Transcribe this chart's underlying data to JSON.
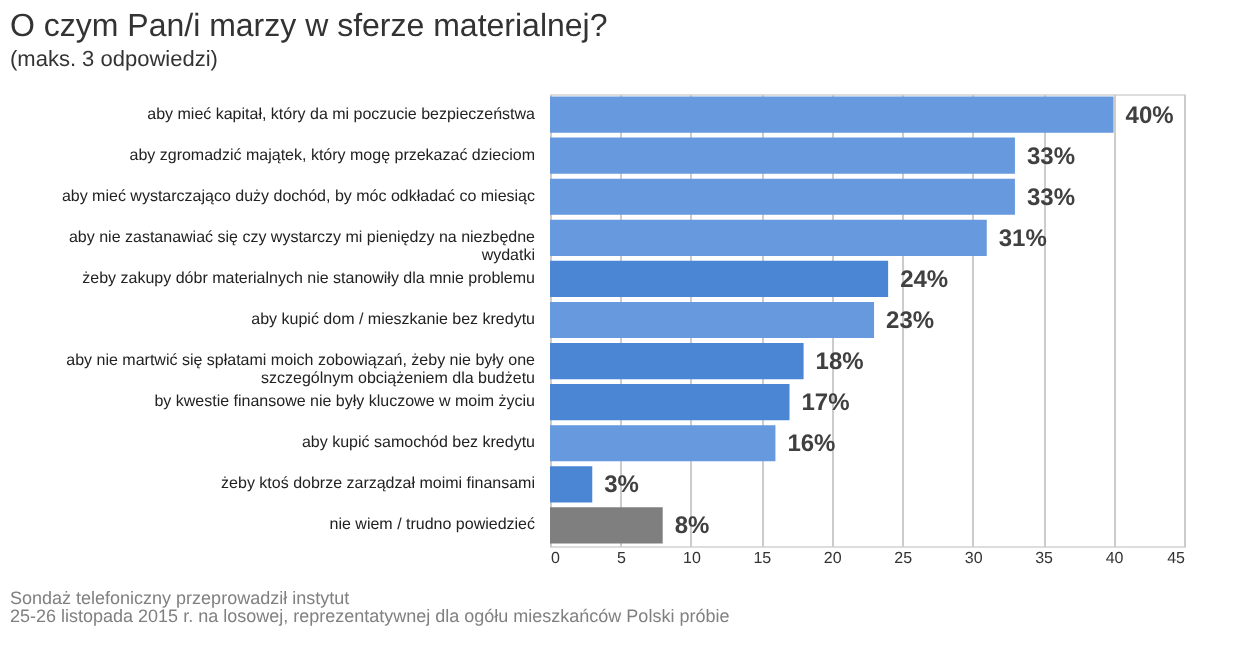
{
  "chart_data": {
    "type": "bar",
    "orientation": "horizontal",
    "title": "O czym Pan/i marzy w sferze materialnej?",
    "subtitle": "(maks. 3 odpowiedzi)",
    "categories": [
      "aby mieć kapitał, który da mi poczucie bezpieczeństwa",
      "aby zgromadzić majątek, który mogę przekazać dzieciom",
      "aby mieć wystarczająco duży dochód, by móc odkładać co miesiąc",
      "aby nie zastanawiać się czy  wystarczy mi pieniędzy na niezbędne\nwydatki",
      "żeby zakupy dóbr materialnych nie stanowiły dla mnie problemu",
      "aby kupić dom / mieszkanie bez kredytu",
      "aby nie martwić się spłatami moich zobowiązań, żeby nie były one\nszczególnym obciążeniem dla budżetu",
      "by kwestie finansowe nie były kluczowe w moim życiu",
      "aby kupić samochód bez kredytu",
      "żeby ktoś dobrze zarządzał moimi finansami",
      "nie wiem / trudno powiedzieć"
    ],
    "values": [
      40,
      33,
      33,
      31,
      24,
      23,
      18,
      17,
      16,
      3,
      8
    ],
    "value_labels": [
      "40%",
      "33%",
      "33%",
      "31%",
      "24%",
      "23%",
      "18%",
      "17%",
      "16%",
      "3%",
      "8%"
    ],
    "colors": [
      "#6699dd",
      "#6699dd",
      "#6699dd",
      "#6699dd",
      "#4a86d4",
      "#6699dd",
      "#4a86d4",
      "#4a86d4",
      "#6699dd",
      "#4a86d4",
      "#7f7f7f"
    ],
    "xlim": [
      0,
      45
    ],
    "xticks": [
      0,
      5,
      10,
      15,
      20,
      25,
      30,
      35,
      40,
      45
    ],
    "grid": "x",
    "annotations": [
      "Sondaż telefoniczny przeprowadził instytut",
      "25-26 listopada 2015 r. na losowej, reprezentatywnej dla  ogółu mieszkańców Polski próbie"
    ]
  }
}
